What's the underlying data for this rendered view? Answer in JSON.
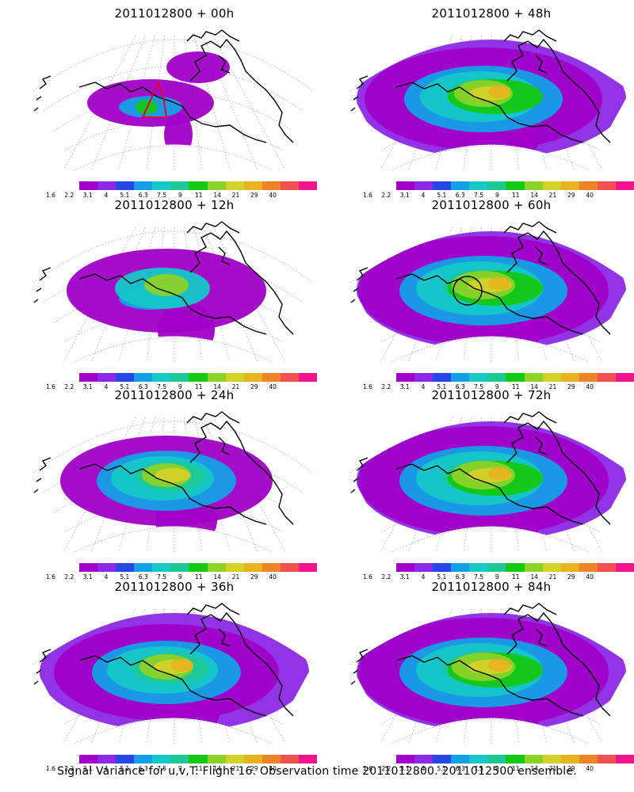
{
  "panels": [
    {
      "title": "2011012800 + 00h",
      "level": 1,
      "marker": "red-box"
    },
    {
      "title": "2011012800 + 48h",
      "level": 5,
      "marker": "none"
    },
    {
      "title": "2011012800 + 12h",
      "level": 2,
      "marker": "none"
    },
    {
      "title": "2011012800 + 60h",
      "level": 6,
      "marker": "black-circle"
    },
    {
      "title": "2011012800 + 24h",
      "level": 3,
      "marker": "none"
    },
    {
      "title": "2011012800 + 72h",
      "level": 7,
      "marker": "none"
    },
    {
      "title": "2011012800 + 36h",
      "level": 4,
      "marker": "none"
    },
    {
      "title": "2011012800 + 84h",
      "level": 8,
      "marker": "none"
    }
  ],
  "colorbar": {
    "colors": [
      "#a000c8",
      "#8c28e6",
      "#2846e6",
      "#14a0e6",
      "#14c8c8",
      "#1ec896",
      "#14c814",
      "#8cd228",
      "#d2d228",
      "#e6b41e",
      "#f08228",
      "#f05050",
      "#f0148c"
    ],
    "labels": [
      "1.6",
      "2.2",
      "3.1",
      "4",
      "5.1",
      "6.3",
      "7.5",
      "9",
      "11",
      "14",
      "21",
      "29",
      "40"
    ]
  },
  "caption": "Signal Variance for u,v,T. Flight 16. Observation time 2011012800. 2011012500 ensemble."
}
